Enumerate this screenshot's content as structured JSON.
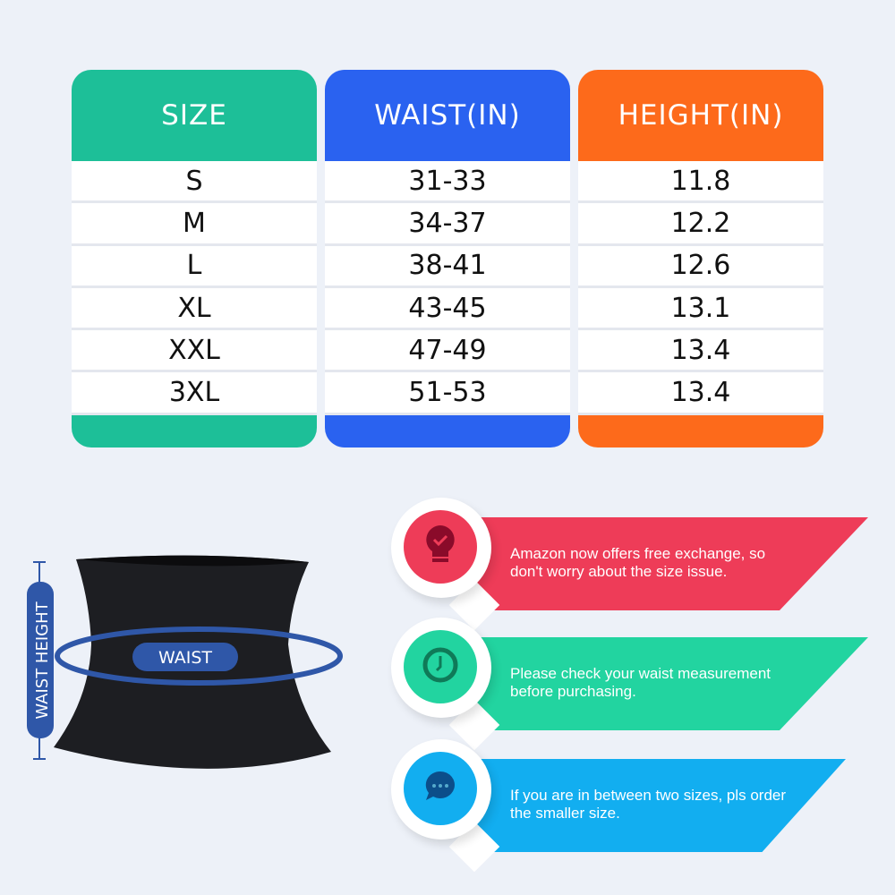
{
  "table": {
    "columns": [
      {
        "header": "SIZE",
        "color": "#1dbf98",
        "values": [
          "S",
          "M",
          "L",
          "XL",
          "XXL",
          "3XL"
        ]
      },
      {
        "header": "WAIST(IN)",
        "color": "#2a62f0",
        "values": [
          "31-33",
          "34-37",
          "38-41",
          "43-45",
          "47-49",
          "51-53"
        ]
      },
      {
        "header": "HEIGHT(IN)",
        "color": "#fd6a1b",
        "values": [
          "11.8",
          "12.2",
          "12.6",
          "13.1",
          "13.4",
          "13.4"
        ]
      }
    ]
  },
  "diagram": {
    "waist_label": "WAIST",
    "height_label": "WAIST HEIGHT",
    "accent": "#2f57a8"
  },
  "tips": [
    {
      "icon": "lightbulb-check-icon",
      "color": "#ee3c58",
      "line1": "Amazon now offers free exchange, so",
      "line2": "don't worry about the size issue."
    },
    {
      "icon": "clock-icon",
      "color": "#22d4a0",
      "line1": "Please check your waist measurement",
      "line2": "before purchasing."
    },
    {
      "icon": "chat-bubble-icon",
      "color": "#12aef0",
      "line1": "If you are in between two sizes, pls order",
      "line2": "the smaller size."
    }
  ]
}
